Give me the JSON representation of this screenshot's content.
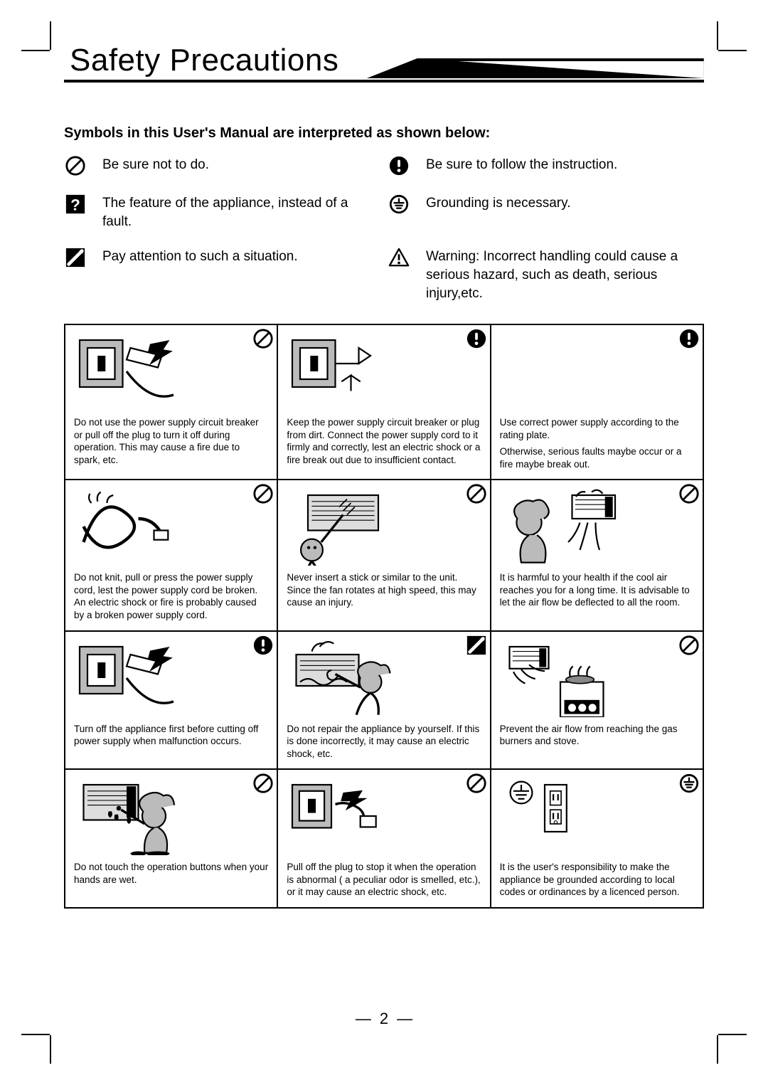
{
  "title": "Safety Precautions",
  "subhead": "Symbols  in this User's Manual are interpreted as shown below:",
  "legend": [
    {
      "icon": "prohibit",
      "text": "Be sure not to do."
    },
    {
      "icon": "exclaim",
      "text": "Be sure to follow the instruction."
    },
    {
      "icon": "question",
      "text": "The feature of the appliance, instead of a fault."
    },
    {
      "icon": "ground",
      "text": "Grounding is necessary."
    },
    {
      "icon": "attention",
      "text": "Pay attention to such a situation."
    },
    {
      "icon": "warning",
      "text": "Warning: Incorrect handling could cause a serious hazard, such as death, serious injury,etc."
    }
  ],
  "cells": [
    {
      "icon": "prohibit",
      "illust": "breaker-plug",
      "text": "Do not use the power supply circuit breaker or pull off the plug to turn it off during operation. This may cause a fire due to spark, etc."
    },
    {
      "icon": "exclaim",
      "illust": "breaker-cord",
      "text": "Keep the power supply circuit breaker or plug from dirt. Connect the power supply cord to it firmly and correctly, lest an electric shock or a fire break out due to insufficient contact."
    },
    {
      "icon": "exclaim",
      "illust": "none",
      "text": "Use correct power supply according to the rating plate.",
      "text2": "Otherwise, serious faults maybe occur or a  fire maybe break out."
    },
    {
      "icon": "prohibit",
      "illust": "cord-knot",
      "text": "Do not knit, pull or press the power supply cord, lest the power supply cord be broken. An electric shock or fire is probably caused by a broken power supply cord."
    },
    {
      "icon": "prohibit",
      "illust": "stick-unit",
      "text": "Never insert a stick or similar to the unit. Since the fan rotates at high speed, this may cause an injury."
    },
    {
      "icon": "prohibit",
      "illust": "cool-air-person",
      "text": "It is harmful to your health if the cool air reaches you for a long time. It is advisable to let the air flow be deflected to all the room."
    },
    {
      "icon": "exclaim",
      "illust": "breaker-plug",
      "text": "Turn off the appliance first before cutting off power supply when malfunction occurs."
    },
    {
      "icon": "attention",
      "illust": "repair-person",
      "text": "Do not repair the appliance by yourself. If this is done incorrectly, it may cause an electric shock, etc."
    },
    {
      "icon": "prohibit",
      "illust": "stove",
      "text": "Prevent the air flow from reaching the gas burners and stove."
    },
    {
      "icon": "prohibit",
      "illust": "wet-hands",
      "text": "Do not touch the operation buttons when your hands are wet."
    },
    {
      "icon": "prohibit",
      "illust": "breaker-pull",
      "text": "Pull off the plug to stop it when the operation is abnormal ( a peculiar odor is smelled, etc.), or it may cause an electric shock, etc."
    },
    {
      "icon": "ground",
      "illust": "ground-outlet",
      "text": "It is the user's responsibility to make the appliance be grounded according to local codes or ordinances by a licenced person."
    }
  ],
  "page_number": "2",
  "colors": {
    "ink": "#000000",
    "paper": "#ffffff"
  }
}
